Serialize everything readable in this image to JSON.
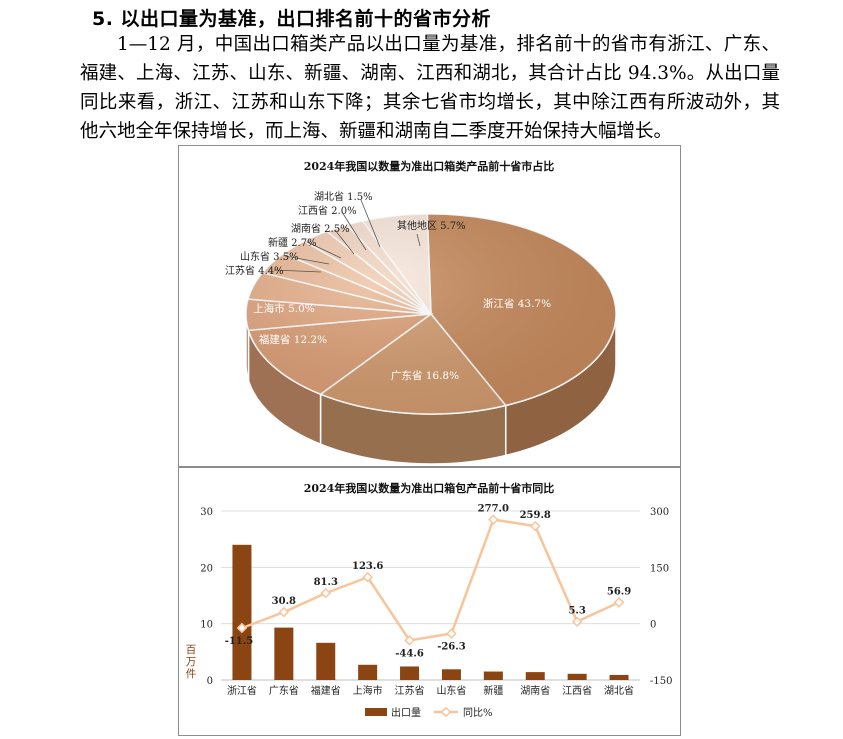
{
  "article": {
    "heading": "5. 以出口量为基准，出口排名前十的省市分析",
    "paragraph": "1—12 月，中国出口箱类产品以出口量为基准，排名前十的省市有浙江、广东、福建、上海、江苏、山东、新疆、湖南、江西和湖北，其合计占比 94.3%。从出口量同比来看，浙江、江苏和山东下降；其余七省市均增长，其中除江西有所波动外，其他六地全年保持增长，而上海、新疆和湖南自二季度开始保持大幅增长。"
  },
  "chart_data": [
    {
      "type": "pie",
      "title": "2024年我国以数量为准出口箱类产品前十省市占比",
      "categories": [
        "浙江省",
        "广东省",
        "福建省",
        "上海市",
        "江苏省",
        "山东省",
        "新疆",
        "湖南省",
        "江西省",
        "湖北省",
        "其他地区"
      ],
      "values": [
        43.7,
        16.8,
        12.2,
        5.0,
        4.4,
        3.5,
        2.7,
        2.5,
        2.0,
        1.5,
        5.7
      ],
      "labels": [
        "浙江省 43.7%",
        "广东省 16.8%",
        "福建省 12.2%",
        "上海市 5.0%",
        "江苏省 4.4%",
        "山东省 3.5%",
        "新疆 2.7%",
        "湖南省 2.5%",
        "江西省 2.0%",
        "湖北省 1.5%",
        "其他地区 5.7%"
      ],
      "colors": [
        "#c78a5c",
        "#d19a6e",
        "#db9d74",
        "#e1a57f",
        "#e6b08b",
        "#ebb997",
        "#eec3a5",
        "#f1ccb3",
        "#f3d5c1",
        "#f6dfcf",
        "#f9e8dc"
      ]
    },
    {
      "type": "bar",
      "title": "2024年我国以数量为准出口箱包产品前十省市同比",
      "categories": [
        "浙江省",
        "广东省",
        "福建省",
        "上海市",
        "江苏省",
        "山东省",
        "新疆",
        "湖南省",
        "江西省",
        "湖北省"
      ],
      "ylabel": "百万件",
      "ylim": [
        0,
        30
      ],
      "y2lim": [
        -150,
        300
      ],
      "yticks": [
        "0",
        "10",
        "20",
        "30"
      ],
      "y2ticks": [
        "-150",
        "0",
        "150",
        "300"
      ],
      "series": [
        {
          "name": "出口量",
          "type": "bar",
          "color": "#8b4513",
          "values": [
            24.0,
            9.3,
            6.6,
            2.7,
            2.4,
            1.9,
            1.5,
            1.4,
            1.1,
            0.9
          ]
        },
        {
          "name": "同比%",
          "type": "line",
          "axis": "right",
          "color": "#f8c49a",
          "values": [
            -11.5,
            30.8,
            81.3,
            123.6,
            -44.6,
            -26.3,
            277.0,
            259.8,
            5.3,
            56.9
          ],
          "labels": [
            "-11.5",
            "30.8",
            "81.3",
            "123.6",
            "-44.6",
            "-26.3",
            "277.0",
            "259.8",
            "5.3",
            "56.9"
          ]
        }
      ]
    }
  ]
}
